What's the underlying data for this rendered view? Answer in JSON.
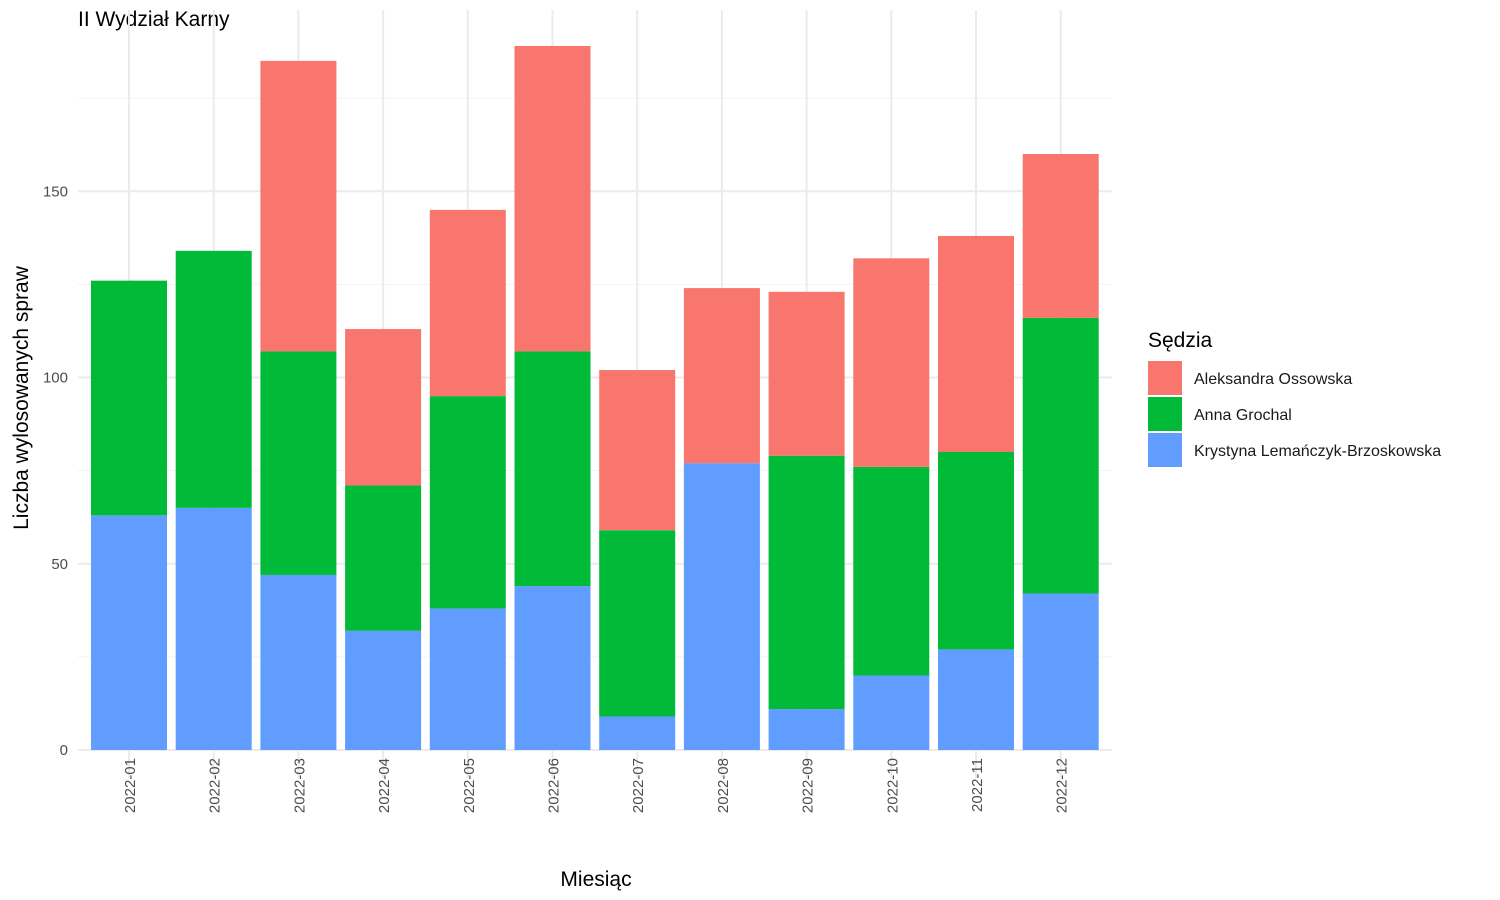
{
  "chart_data": {
    "type": "bar",
    "stacked": true,
    "title": "II Wydział Karny",
    "xlabel": "Miesiąc",
    "ylabel": "Liczba wylosowanych spraw",
    "ylim": [
      0,
      189
    ],
    "yticks": [
      0,
      50,
      100,
      150
    ],
    "grid": true,
    "legend": {
      "title": "Sędzia",
      "placement": "right"
    },
    "categories": [
      "2022-01",
      "2022-02",
      "2022-03",
      "2022-04",
      "2022-05",
      "2022-06",
      "2022-07",
      "2022-08",
      "2022-09",
      "2022-10",
      "2022-11",
      "2022-12"
    ],
    "series": [
      {
        "name": "Krystyna Lemańczyk-Brzoskowska",
        "color": "#619CFF",
        "values": [
          63,
          65,
          47,
          32,
          38,
          44,
          9,
          77,
          11,
          20,
          27,
          42
        ]
      },
      {
        "name": "Anna Grochal",
        "color": "#00BA38",
        "values": [
          63,
          69,
          60,
          39,
          57,
          63,
          50,
          0,
          68,
          56,
          53,
          74
        ]
      },
      {
        "name": "Aleksandra Ossowska",
        "color": "#F8766D",
        "values": [
          0,
          0,
          78,
          42,
          50,
          82,
          43,
          47,
          44,
          56,
          58,
          44
        ]
      }
    ],
    "legend_order": [
      "Aleksandra Ossowska",
      "Anna Grochal",
      "Krystyna Lemańczyk-Brzoskowska"
    ]
  }
}
